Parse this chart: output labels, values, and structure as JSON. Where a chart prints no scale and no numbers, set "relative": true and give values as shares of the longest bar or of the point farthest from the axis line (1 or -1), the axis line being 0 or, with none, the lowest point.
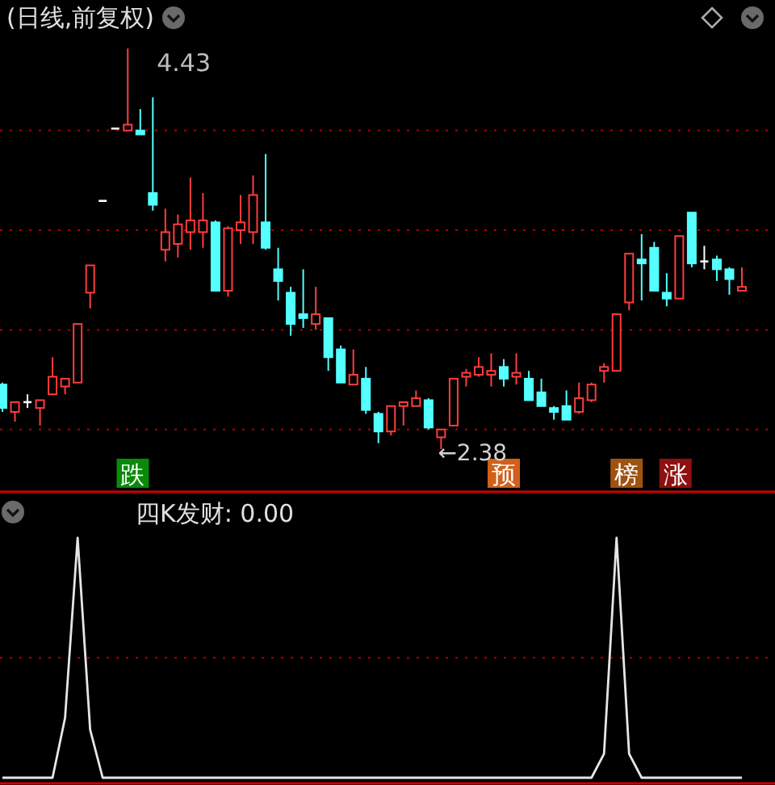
{
  "chart_data": [
    {
      "type": "candlestick",
      "title": "(日线,前复权)",
      "categories": [
        null,
        null,
        null,
        null,
        null,
        null,
        null,
        null,
        null,
        null,
        null,
        null,
        null,
        null,
        null,
        null,
        null,
        null,
        null,
        null,
        null,
        null,
        null,
        null,
        null,
        null,
        null,
        null,
        null,
        null,
        null,
        null,
        null,
        null,
        null,
        null,
        null,
        null,
        null,
        null,
        null,
        null,
        null,
        null,
        null,
        null,
        null,
        null,
        null,
        null,
        null,
        null,
        null,
        null,
        null,
        null,
        null,
        null,
        null,
        null
      ],
      "ohlc": [
        [
          2.71,
          2.72,
          2.57,
          2.59
        ],
        [
          2.57,
          2.62,
          2.52,
          2.62
        ],
        [
          2.62,
          2.66,
          2.59,
          2.62
        ],
        [
          2.59,
          2.63,
          2.5,
          2.63
        ],
        [
          2.66,
          2.85,
          2.66,
          2.75
        ],
        [
          2.7,
          2.74,
          2.66,
          2.74
        ],
        [
          2.72,
          3.02,
          2.72,
          3.02
        ],
        [
          3.18,
          3.32,
          3.1,
          3.32
        ],
        [
          3.65,
          3.65,
          3.65,
          3.65
        ],
        [
          4.02,
          4.02,
          4.02,
          4.02
        ],
        [
          4.01,
          4.43,
          4.01,
          4.04
        ],
        [
          4.01,
          4.12,
          3.99,
          3.99
        ],
        [
          3.69,
          4.18,
          3.6,
          3.63
        ],
        [
          3.4,
          3.61,
          3.34,
          3.49
        ],
        [
          3.43,
          3.58,
          3.36,
          3.53
        ],
        [
          3.49,
          3.77,
          3.4,
          3.55
        ],
        [
          3.49,
          3.69,
          3.41,
          3.55
        ],
        [
          3.54,
          3.55,
          3.19,
          3.19
        ],
        [
          3.19,
          3.52,
          3.16,
          3.51
        ],
        [
          3.5,
          3.68,
          3.43,
          3.54
        ],
        [
          3.49,
          3.78,
          3.43,
          3.68
        ],
        [
          3.54,
          3.89,
          3.4,
          3.41
        ],
        [
          3.3,
          3.41,
          3.14,
          3.24
        ],
        [
          3.18,
          3.21,
          2.96,
          3.02
        ],
        [
          3.07,
          3.3,
          3.0,
          3.05
        ],
        [
          3.02,
          3.21,
          2.99,
          3.07
        ],
        [
          3.05,
          3.05,
          2.78,
          2.85
        ],
        [
          2.89,
          2.91,
          2.72,
          2.72
        ],
        [
          2.71,
          2.89,
          2.71,
          2.76
        ],
        [
          2.74,
          2.8,
          2.56,
          2.58
        ],
        [
          2.56,
          2.57,
          2.41,
          2.47
        ],
        [
          2.47,
          2.6,
          2.45,
          2.6
        ],
        [
          2.6,
          2.62,
          2.5,
          2.62
        ],
        [
          2.6,
          2.68,
          2.6,
          2.64
        ],
        [
          2.63,
          2.64,
          2.48,
          2.49
        ],
        [
          2.44,
          2.48,
          2.38,
          2.48
        ],
        [
          2.5,
          2.74,
          2.5,
          2.74
        ],
        [
          2.75,
          2.79,
          2.7,
          2.77
        ],
        [
          2.76,
          2.85,
          2.75,
          2.8
        ],
        [
          2.76,
          2.87,
          2.7,
          2.78
        ],
        [
          2.8,
          2.84,
          2.7,
          2.74
        ],
        [
          2.75,
          2.87,
          2.71,
          2.77
        ],
        [
          2.74,
          2.78,
          2.63,
          2.63
        ],
        [
          2.67,
          2.74,
          2.6,
          2.6
        ],
        [
          2.59,
          2.6,
          2.53,
          2.57
        ],
        [
          2.6,
          2.68,
          2.53,
          2.53
        ],
        [
          2.57,
          2.72,
          2.56,
          2.64
        ],
        [
          2.63,
          2.72,
          2.62,
          2.71
        ],
        [
          2.78,
          2.82,
          2.72,
          2.8
        ],
        [
          2.78,
          3.07,
          2.78,
          3.07
        ],
        [
          3.13,
          3.38,
          3.09,
          3.38
        ],
        [
          3.35,
          3.48,
          3.14,
          3.33
        ],
        [
          3.41,
          3.44,
          3.19,
          3.19
        ],
        [
          3.18,
          3.28,
          3.11,
          3.15
        ],
        [
          3.15,
          3.47,
          3.15,
          3.47
        ],
        [
          3.59,
          3.59,
          3.31,
          3.33
        ],
        [
          3.34,
          3.42,
          3.3,
          3.34
        ],
        [
          3.35,
          3.37,
          3.24,
          3.3
        ],
        [
          3.3,
          3.31,
          3.17,
          3.25
        ],
        [
          3.19,
          3.31,
          3.19,
          3.21
        ]
      ],
      "colors": [
        "#54ffff",
        "#ff3c3c",
        "#ffffff",
        "#ff3c3c",
        "#ff3c3c",
        "#ff3c3c",
        "#ff3c3c",
        "#ff3c3c",
        "#ffffff",
        "#ffffff",
        "#ff3c3c",
        "#54ffff",
        "#54ffff",
        "#ff3c3c",
        "#ff3c3c",
        "#ff3c3c",
        "#ff3c3c",
        "#54ffff",
        "#ff3c3c",
        "#ff3c3c",
        "#ff3c3c",
        "#54ffff",
        "#54ffff",
        "#54ffff",
        "#54ffff",
        "#ff3c3c",
        "#54ffff",
        "#54ffff",
        "#ff3c3c",
        "#54ffff",
        "#54ffff",
        "#ff3c3c",
        "#ff3c3c",
        "#ff3c3c",
        "#54ffff",
        "#ff3c3c",
        "#ff3c3c",
        "#ff3c3c",
        "#ff3c3c",
        "#ff3c3c",
        "#54ffff",
        "#ff3c3c",
        "#54ffff",
        "#54ffff",
        "#54ffff",
        "#54ffff",
        "#ff3c3c",
        "#ff3c3c",
        "#ff3c3c",
        "#ff3c3c",
        "#ff3c3c",
        "#54ffff",
        "#54ffff",
        "#54ffff",
        "#ff3c3c",
        "#54ffff",
        "#ffffff",
        "#54ffff",
        "#54ffff",
        "#ff3c3c"
      ],
      "yticks": [
        {
          "value": 2.48,
          "label": null
        },
        {
          "value": 2.99,
          "label": null
        },
        {
          "value": 3.5,
          "label": null
        },
        {
          "value": 4.01,
          "label": null
        }
      ],
      "grid": "y",
      "annotations": [
        "4.43",
        "←2.38",
        "跌",
        "预",
        "榜",
        "涨"
      ]
    },
    {
      "type": "line",
      "title": "四K发财: 0.00",
      "relative": true,
      "categories": [
        null,
        null,
        null,
        null,
        null,
        null,
        null,
        null,
        null,
        null,
        null,
        null,
        null,
        null,
        null,
        null,
        null,
        null,
        null,
        null,
        null,
        null,
        null,
        null,
        null,
        null,
        null,
        null,
        null,
        null,
        null,
        null,
        null,
        null,
        null,
        null,
        null,
        null,
        null,
        null,
        null,
        null,
        null,
        null,
        null,
        null,
        null,
        null,
        null,
        null,
        null,
        null,
        null,
        null,
        null,
        null,
        null,
        null,
        null,
        null
      ],
      "series": [
        {
          "color": "#e6e6e6",
          "values": [
            0,
            0,
            0,
            0,
            0,
            0.25,
            1,
            0.2,
            0,
            0,
            0,
            0,
            0,
            0,
            0,
            0,
            0,
            0,
            0,
            0,
            0,
            0,
            0,
            0,
            0,
            0,
            0,
            0,
            0,
            0,
            0,
            0,
            0,
            0,
            0,
            0,
            0,
            0,
            0,
            0,
            0,
            0,
            0,
            0,
            0,
            0,
            0,
            0,
            0.1,
            1,
            0.1,
            0,
            0,
            0,
            0,
            0,
            0,
            0,
            0,
            0
          ]
        }
      ],
      "ref_lines": [
        {
          "axis": "y",
          "value": 0.5,
          "color": "#b00000",
          "line_style": "dotted"
        }
      ]
    }
  ]
}
